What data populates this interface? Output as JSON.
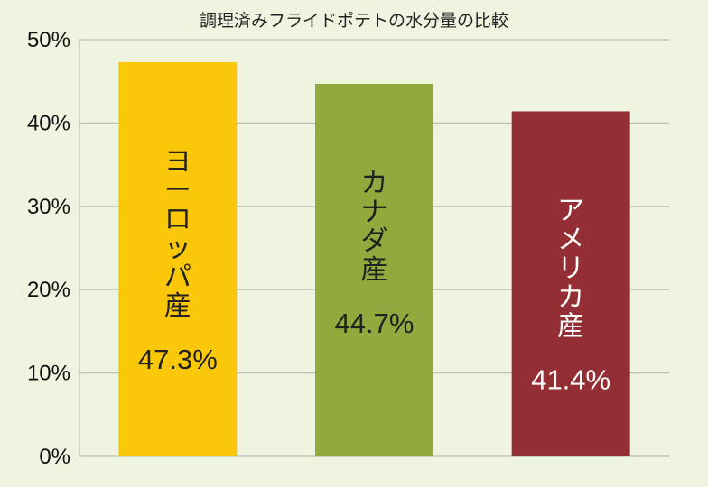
{
  "chart_data": {
    "type": "bar",
    "title": "調理済みフライドポテトの水分量の比較",
    "categories": [
      "ヨーロッパ産",
      "カナダ産",
      "アメリカ産"
    ],
    "values": [
      47.3,
      44.7,
      41.4
    ],
    "value_labels": [
      "47.3%",
      "44.7%",
      "41.4%"
    ],
    "bar_colors": [
      "#fbc809",
      "#92aa3d",
      "#922e34"
    ],
    "label_colors": [
      "#222222",
      "#222222",
      "#ffffff"
    ],
    "ylim": [
      0,
      50
    ],
    "yticks": [
      0,
      10,
      20,
      30,
      40,
      50
    ],
    "ytick_labels": [
      "0%",
      "10%",
      "20%",
      "30%",
      "40%",
      "50%"
    ],
    "grid": true,
    "xlabel": "",
    "ylabel": ""
  }
}
